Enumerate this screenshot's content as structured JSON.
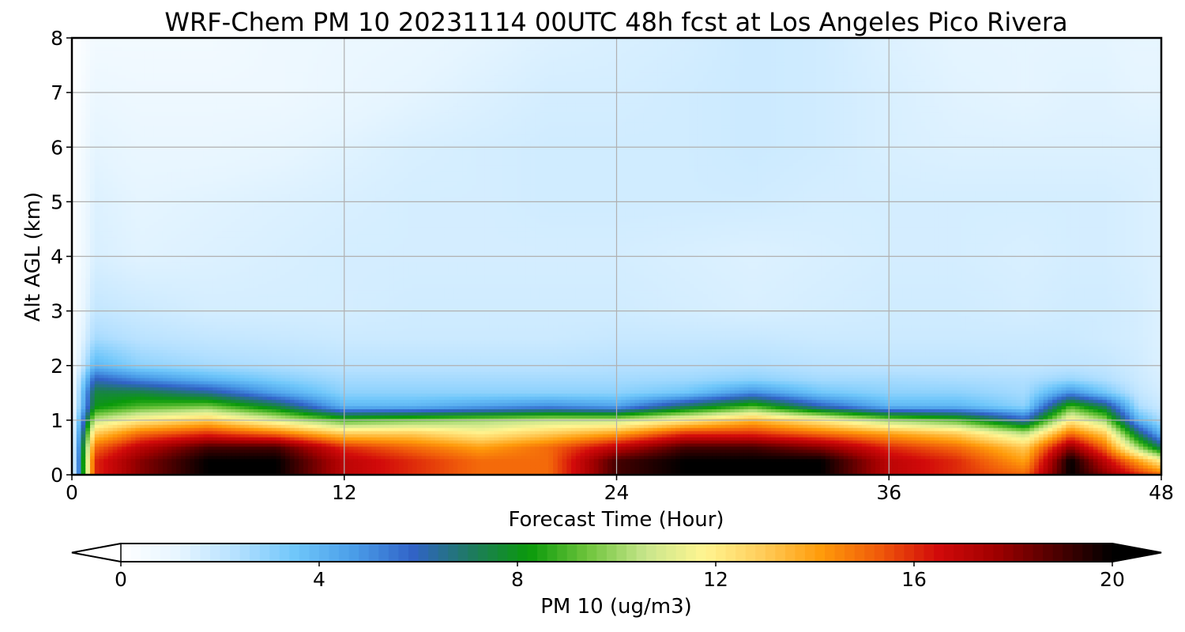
{
  "chart_data": {
    "type": "heatmap",
    "title": "WRF-Chem PM 10  20231114 00UTC 48h fcst at Los Angeles Pico Rivera",
    "xlabel": "Forecast Time (Hour)",
    "ylabel": "Alt AGL (km)",
    "xlim": [
      0,
      48
    ],
    "ylim": [
      0,
      8
    ],
    "xticks": [
      "0",
      "12",
      "24",
      "36",
      "48"
    ],
    "yticks": [
      "0",
      "1",
      "2",
      "3",
      "4",
      "5",
      "6",
      "7",
      "8"
    ],
    "grid": true,
    "colorbar": {
      "label": "PM 10  (ug/m3)",
      "range": [
        0,
        20
      ],
      "ticks": [
        "0",
        "4",
        "8",
        "12",
        "16",
        "20"
      ],
      "extend": "both",
      "colors": [
        "#ffffff",
        "#e6f5ff",
        "#b4e0ff",
        "#6ec6fa",
        "#4a9de8",
        "#3163c8",
        "#1e7a60",
        "#0a9a0a",
        "#6ec43c",
        "#c8e68c",
        "#fff591",
        "#ffcd5a",
        "#ff9b0a",
        "#f05a0a",
        "#d20a0a",
        "#a00000",
        "#500000",
        "#000000"
      ]
    },
    "series": [
      {
        "x": [
          0,
          1,
          3,
          6,
          9,
          12,
          15,
          18,
          21,
          24,
          27,
          30,
          33,
          36,
          39,
          42,
          44,
          45.5,
          47,
          48
        ],
        "y_km": [
          0,
          0.25,
          0.5,
          0.75,
          1.0,
          1.25,
          1.5,
          1.75,
          2.0,
          2.5,
          3.0,
          4.0,
          5.0,
          6.0,
          7.0,
          8.0
        ],
        "values": [
          [
            0.5,
            16,
            18,
            20,
            20,
            17,
            16,
            15,
            15,
            19,
            20,
            20,
            20,
            17,
            16,
            15,
            20,
            18,
            16,
            15
          ],
          [
            0.5,
            16,
            18,
            20,
            20,
            17,
            16,
            15,
            15,
            19,
            20,
            20,
            20,
            17,
            16,
            14,
            20,
            17,
            14,
            12
          ],
          [
            0.5,
            15,
            17,
            19,
            19,
            16,
            15,
            14,
            15,
            17,
            19,
            19,
            18,
            16,
            15,
            13,
            18,
            15,
            10,
            7
          ],
          [
            0.5,
            13,
            15,
            16,
            15,
            13,
            13,
            12,
            13,
            14,
            16,
            16,
            15,
            14,
            13,
            10.5,
            15,
            13,
            7,
            4
          ],
          [
            0.5,
            10.5,
            12,
            13,
            11,
            9,
            9.5,
            10,
            10.5,
            10.5,
            12,
            13.5,
            12,
            10,
            9,
            6,
            12,
            10,
            4,
            2.5
          ],
          [
            0.4,
            8,
            9,
            9.5,
            7.5,
            4,
            4,
            4.5,
            5,
            4.5,
            7,
            9,
            6,
            4,
            4,
            3,
            9,
            7,
            2.5,
            1.8
          ],
          [
            0.3,
            7.5,
            7.5,
            6.5,
            4.5,
            3,
            3,
            3,
            3,
            3,
            3.5,
            5,
            3.5,
            3,
            3,
            2.6,
            5,
            3.5,
            2,
            1.6
          ],
          [
            0.25,
            6,
            5,
            4,
            3.2,
            2.6,
            2.6,
            2.6,
            2.6,
            2.6,
            2.7,
            3,
            2.6,
            2.6,
            2.5,
            2.4,
            2.8,
            2.4,
            1.8,
            1.5
          ],
          [
            0.2,
            4,
            3,
            2.6,
            2.4,
            2.2,
            2.2,
            2.2,
            2.2,
            2.3,
            2.3,
            2.4,
            2.2,
            2.1,
            2.1,
            2.0,
            2.1,
            2.0,
            1.7,
            1.4
          ],
          [
            0.15,
            2.6,
            2.2,
            2.0,
            1.9,
            1.8,
            1.8,
            1.8,
            1.8,
            1.9,
            1.9,
            1.9,
            1.8,
            1.8,
            1.8,
            1.8,
            1.8,
            1.7,
            1.6,
            1.4
          ],
          [
            0.1,
            2.0,
            1.8,
            1.6,
            1.6,
            1.6,
            1.7,
            1.7,
            1.7,
            1.7,
            1.6,
            1.5,
            1.6,
            1.7,
            1.7,
            1.6,
            1.7,
            1.7,
            1.6,
            1.4
          ],
          [
            0.05,
            1.5,
            1.3,
            1.4,
            1.5,
            1.6,
            1.6,
            1.6,
            1.6,
            1.6,
            1.5,
            1.4,
            1.5,
            1.6,
            1.6,
            1.5,
            1.6,
            1.6,
            1.5,
            1.4
          ],
          [
            0.05,
            1.4,
            1.2,
            1.3,
            1.4,
            1.5,
            1.6,
            1.6,
            1.7,
            1.7,
            1.7,
            1.7,
            1.6,
            1.6,
            1.6,
            1.6,
            1.6,
            1.6,
            1.5,
            1.4
          ],
          [
            0.05,
            1.2,
            1.0,
            1.0,
            1.1,
            1.3,
            1.5,
            1.6,
            1.7,
            1.7,
            1.7,
            1.8,
            1.7,
            1.5,
            1.4,
            1.4,
            1.4,
            1.4,
            1.4,
            1.4
          ],
          [
            0.02,
            0.9,
            0.8,
            0.8,
            0.8,
            1.0,
            1.2,
            1.4,
            1.6,
            1.6,
            1.7,
            1.8,
            1.7,
            1.5,
            1.3,
            1.2,
            1.3,
            1.3,
            1.2,
            1.2
          ],
          [
            0.02,
            0.6,
            0.6,
            0.6,
            0.8,
            0.9,
            1.0,
            1.2,
            1.4,
            1.5,
            1.6,
            1.8,
            1.7,
            1.4,
            1.2,
            1.2,
            1.2,
            1.2,
            1.1,
            1.1
          ]
        ]
      }
    ]
  }
}
